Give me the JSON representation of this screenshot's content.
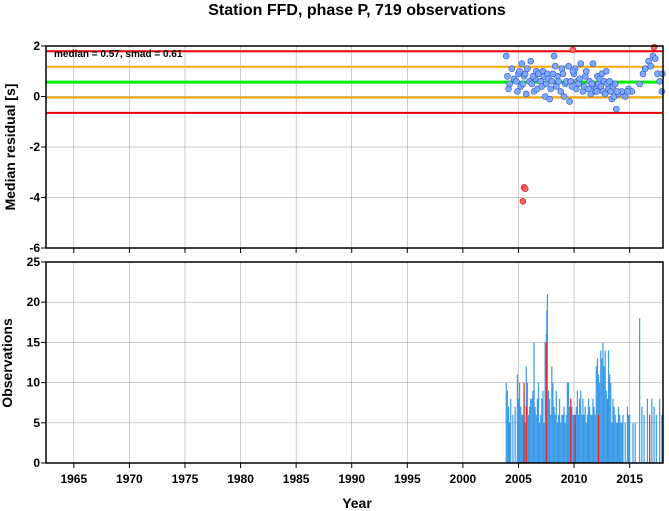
{
  "title": "Station FFD, phase P, 719 observations",
  "chart_data": [
    {
      "type": "scatter",
      "ylabel": "Median residual [s]",
      "annotation": "median = 0.57, smad = 0.61",
      "xlim": [
        1962.5,
        2018.0
      ],
      "ylim": [
        -6,
        2
      ],
      "y_ticks": [
        "2",
        "0",
        "-2",
        "-4",
        "-6"
      ],
      "y_tick_values": [
        2,
        0,
        -2,
        -4,
        -6
      ],
      "grid": true,
      "reference_lines": [
        {
          "name": "median",
          "y": 0.57,
          "color": "#00ee00"
        },
        {
          "name": "median + 1 smad",
          "y": 1.18,
          "color": "#ffa500"
        },
        {
          "name": "median - 1 smad",
          "y": -0.04,
          "color": "#ffa500"
        },
        {
          "name": "median + 2 smad",
          "y": 1.79,
          "color": "#ee0000"
        },
        {
          "name": "median - 2 smad",
          "y": -0.65,
          "color": "#ee0000"
        }
      ],
      "series": [
        {
          "color": "#7fa8ff",
          "points": [
            [
              2003.9,
              1.6
            ],
            [
              2004.0,
              0.8
            ],
            [
              2004.1,
              0.3
            ],
            [
              2004.2,
              0.5
            ],
            [
              2004.4,
              1.1
            ],
            [
              2004.6,
              0.7
            ],
            [
              2004.8,
              0.6
            ],
            [
              2004.9,
              0.2
            ],
            [
              2005.0,
              0.9
            ],
            [
              2005.1,
              1.0
            ],
            [
              2005.2,
              0.4
            ],
            [
              2005.3,
              1.3
            ],
            [
              2005.5,
              0.8
            ],
            [
              2005.6,
              0.9
            ],
            [
              2005.7,
              0.1
            ],
            [
              2005.8,
              1.1
            ],
            [
              2006.0,
              0.6
            ],
            [
              2006.1,
              1.4
            ],
            [
              2006.2,
              0.5
            ],
            [
              2006.4,
              0.2
            ],
            [
              2006.5,
              0.7
            ],
            [
              2006.6,
              1.0
            ],
            [
              2006.7,
              0.3
            ],
            [
              2006.8,
              0.9
            ],
            [
              2007.0,
              0.6
            ],
            [
              2007.1,
              0.4
            ],
            [
              2007.2,
              1.0
            ],
            [
              2007.3,
              0.8
            ],
            [
              2007.4,
              0.0
            ],
            [
              2007.5,
              0.5
            ],
            [
              2007.6,
              0.9
            ],
            [
              2007.7,
              0.7
            ],
            [
              2007.8,
              -0.1
            ],
            [
              2007.9,
              0.3
            ],
            [
              2008.0,
              0.6
            ],
            [
              2008.2,
              1.6
            ],
            [
              2008.3,
              1.2
            ],
            [
              2008.4,
              0.4
            ],
            [
              2008.5,
              0.8
            ],
            [
              2008.6,
              0.6
            ],
            [
              2008.8,
              0.2
            ],
            [
              2008.9,
              1.1
            ],
            [
              2009.0,
              0.9
            ],
            [
              2009.1,
              0.0
            ],
            [
              2009.2,
              0.5
            ],
            [
              2009.3,
              0.6
            ],
            [
              2009.5,
              1.2
            ],
            [
              2009.6,
              -0.2
            ],
            [
              2009.7,
              0.6
            ],
            [
              2009.8,
              0.4
            ],
            [
              2010.0,
              0.9
            ],
            [
              2010.1,
              1.1
            ],
            [
              2010.2,
              0.3
            ],
            [
              2010.3,
              0.6
            ],
            [
              2010.5,
              0.7
            ],
            [
              2010.6,
              1.3
            ],
            [
              2010.8,
              0.2
            ],
            [
              2010.9,
              0.4
            ],
            [
              2011.0,
              0.8
            ],
            [
              2011.1,
              1.0
            ],
            [
              2011.3,
              0.3
            ],
            [
              2011.4,
              0.6
            ],
            [
              2011.5,
              0.1
            ],
            [
              2011.7,
              1.3
            ],
            [
              2011.8,
              0.4
            ],
            [
              2011.9,
              0.2
            ],
            [
              2012.0,
              0.3
            ],
            [
              2012.1,
              0.8
            ],
            [
              2012.2,
              0.5
            ],
            [
              2012.3,
              0.7
            ],
            [
              2012.4,
              0.4
            ],
            [
              2012.5,
              0.9
            ],
            [
              2012.6,
              0.2
            ],
            [
              2012.7,
              0.6
            ],
            [
              2012.8,
              0.1
            ],
            [
              2012.9,
              1.0
            ],
            [
              2013.0,
              0.5
            ],
            [
              2013.1,
              0.3
            ],
            [
              2013.2,
              0.6
            ],
            [
              2013.3,
              0.2
            ],
            [
              2013.4,
              -0.1
            ],
            [
              2013.5,
              0.4
            ],
            [
              2013.6,
              0.0
            ],
            [
              2013.7,
              0.5
            ],
            [
              2013.8,
              -0.5
            ],
            [
              2014.0,
              0.1
            ],
            [
              2014.3,
              0.2
            ],
            [
              2014.6,
              0.0
            ],
            [
              2014.9,
              0.3
            ],
            [
              2015.2,
              0.2
            ],
            [
              2015.9,
              0.5
            ],
            [
              2016.2,
              0.9
            ],
            [
              2016.4,
              1.1
            ],
            [
              2016.7,
              1.4
            ],
            [
              2016.9,
              1.2
            ],
            [
              2017.1,
              1.6
            ],
            [
              2017.3,
              1.5
            ],
            [
              2017.5,
              0.9
            ],
            [
              2017.7,
              0.6
            ],
            [
              2017.9,
              0.2
            ],
            [
              2017.95,
              0.9
            ],
            [
              2006.3,
              0.8
            ],
            [
              2008.1,
              0.9
            ],
            [
              2010.4,
              0.5
            ],
            [
              2012.05,
              0.2
            ],
            [
              2014.8,
              0.2
            ],
            [
              2005.4,
              0.5
            ],
            [
              2009.9,
              1.0
            ],
            [
              2011.6,
              0.5
            ],
            [
              2013.9,
              0.2
            ]
          ]
        },
        {
          "color": "#ff6060",
          "points": [
            [
              2005.5,
              -3.6
            ],
            [
              2005.6,
              -3.65
            ],
            [
              2005.4,
              -4.15
            ],
            [
              2009.9,
              1.85
            ],
            [
              2017.2,
              1.95
            ]
          ]
        }
      ]
    },
    {
      "type": "bar",
      "xlabel": "Year",
      "ylabel": "Observations",
      "xlim": [
        1962.5,
        2018.0
      ],
      "ylim": [
        0,
        25
      ],
      "x_ticks": [
        "1965",
        "1970",
        "1975",
        "1980",
        "1985",
        "1990",
        "1995",
        "2000",
        "2005",
        "2010",
        "2015"
      ],
      "x_tick_values": [
        1965,
        1970,
        1975,
        1980,
        1985,
        1990,
        1995,
        2000,
        2005,
        2010,
        2015
      ],
      "y_ticks": [
        "25",
        "20",
        "15",
        "10",
        "5",
        "0"
      ],
      "y_tick_values": [
        25,
        20,
        15,
        10,
        5,
        0
      ],
      "grid": true,
      "series": [
        {
          "color": "#3a9ae8",
          "points": [
            [
              2003.9,
              10
            ],
            [
              2004.0,
              9
            ],
            [
              2004.1,
              7
            ],
            [
              2004.2,
              5
            ],
            [
              2004.3,
              8
            ],
            [
              2004.5,
              6
            ],
            [
              2004.7,
              7
            ],
            [
              2004.9,
              11
            ],
            [
              2005.0,
              8
            ],
            [
              2005.1,
              10
            ],
            [
              2005.2,
              7
            ],
            [
              2005.3,
              6
            ],
            [
              2005.4,
              6
            ],
            [
              2005.5,
              9
            ],
            [
              2005.6,
              5
            ],
            [
              2005.7,
              12
            ],
            [
              2005.8,
              10
            ],
            [
              2005.9,
              6
            ],
            [
              2006.0,
              7
            ],
            [
              2006.1,
              8
            ],
            [
              2006.2,
              8
            ],
            [
              2006.3,
              9
            ],
            [
              2006.4,
              15
            ],
            [
              2006.5,
              7
            ],
            [
              2006.6,
              6
            ],
            [
              2006.7,
              8
            ],
            [
              2006.8,
              10
            ],
            [
              2006.9,
              5
            ],
            [
              2007.0,
              6
            ],
            [
              2007.1,
              8
            ],
            [
              2007.2,
              9
            ],
            [
              2007.3,
              5
            ],
            [
              2007.4,
              15
            ],
            [
              2007.5,
              16
            ],
            [
              2007.55,
              19
            ],
            [
              2007.6,
              21
            ],
            [
              2007.7,
              9
            ],
            [
              2007.8,
              8
            ],
            [
              2007.9,
              6
            ],
            [
              2008.0,
              12
            ],
            [
              2008.1,
              10
            ],
            [
              2008.2,
              7
            ],
            [
              2008.3,
              6
            ],
            [
              2008.4,
              9
            ],
            [
              2008.5,
              5
            ],
            [
              2008.6,
              6
            ],
            [
              2008.7,
              8
            ],
            [
              2008.8,
              5
            ],
            [
              2008.9,
              6
            ],
            [
              2009.0,
              6
            ],
            [
              2009.1,
              7
            ],
            [
              2009.2,
              5
            ],
            [
              2009.3,
              6
            ],
            [
              2009.4,
              10
            ],
            [
              2009.5,
              10
            ],
            [
              2009.6,
              7
            ],
            [
              2009.7,
              8
            ],
            [
              2009.8,
              7
            ],
            [
              2009.9,
              6
            ],
            [
              2010.0,
              6
            ],
            [
              2010.1,
              5
            ],
            [
              2010.2,
              7
            ],
            [
              2010.3,
              9
            ],
            [
              2010.4,
              6
            ],
            [
              2010.5,
              8
            ],
            [
              2010.6,
              9
            ],
            [
              2010.7,
              6
            ],
            [
              2010.8,
              8
            ],
            [
              2010.9,
              6
            ],
            [
              2011.0,
              7
            ],
            [
              2011.1,
              5
            ],
            [
              2011.2,
              6
            ],
            [
              2011.3,
              8
            ],
            [
              2011.4,
              7
            ],
            [
              2011.5,
              6
            ],
            [
              2011.6,
              6
            ],
            [
              2011.7,
              8
            ],
            [
              2011.8,
              7
            ],
            [
              2011.9,
              6
            ],
            [
              2012.0,
              12
            ],
            [
              2012.1,
              13
            ],
            [
              2012.2,
              11
            ],
            [
              2012.3,
              10
            ],
            [
              2012.4,
              14
            ],
            [
              2012.5,
              13
            ],
            [
              2012.6,
              15
            ],
            [
              2012.7,
              12
            ],
            [
              2012.8,
              14
            ],
            [
              2012.9,
              9
            ],
            [
              2013.0,
              8
            ],
            [
              2013.1,
              14
            ],
            [
              2013.2,
              11
            ],
            [
              2013.3,
              10
            ],
            [
              2013.4,
              5
            ],
            [
              2013.5,
              8
            ],
            [
              2013.6,
              7
            ],
            [
              2013.7,
              6
            ],
            [
              2013.8,
              5
            ],
            [
              2013.9,
              5
            ],
            [
              2014.0,
              7
            ],
            [
              2014.1,
              6
            ],
            [
              2014.2,
              5
            ],
            [
              2014.3,
              5
            ],
            [
              2014.4,
              6
            ],
            [
              2014.6,
              5
            ],
            [
              2014.8,
              7
            ],
            [
              2014.9,
              6
            ],
            [
              2015.0,
              6
            ],
            [
              2015.3,
              5
            ],
            [
              2015.5,
              5
            ],
            [
              2015.9,
              18
            ],
            [
              2016.1,
              7
            ],
            [
              2016.3,
              6
            ],
            [
              2016.6,
              8
            ],
            [
              2016.8,
              5
            ],
            [
              2017.0,
              8
            ],
            [
              2017.2,
              7
            ],
            [
              2017.4,
              6
            ],
            [
              2017.7,
              8
            ],
            [
              2017.9,
              6
            ]
          ]
        },
        {
          "color": "#ee2222",
          "points": [
            [
              2005.5,
              10
            ],
            [
              2005.7,
              7
            ],
            [
              2007.5,
              15
            ],
            [
              2009.7,
              8
            ],
            [
              2010.1,
              6
            ],
            [
              2012.2,
              6
            ],
            [
              2016.8,
              6
            ]
          ]
        }
      ]
    }
  ]
}
